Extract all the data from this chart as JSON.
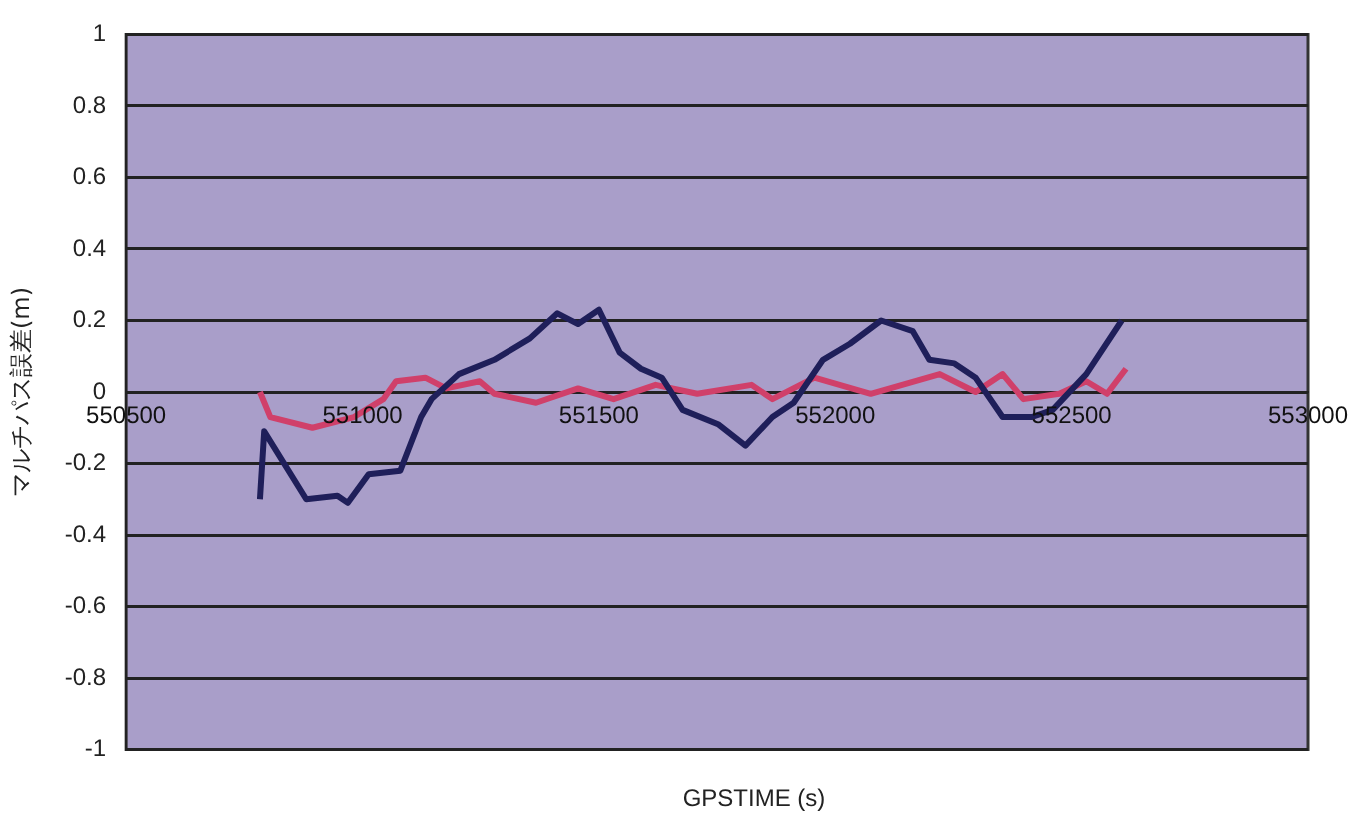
{
  "chart_data": {
    "type": "line",
    "xlabel": "GPSTIME (s)",
    "ylabel": "マルチパス誤差(m)",
    "xlim": [
      550500,
      553000
    ],
    "xticks": [
      550500,
      551000,
      551500,
      552000,
      552500,
      553000
    ],
    "ylim": [
      -1,
      1
    ],
    "yticks": [
      -1,
      -0.8,
      -0.6,
      -0.4,
      -0.2,
      0,
      0.2,
      0.4,
      0.6,
      0.8,
      1
    ],
    "grid": "y",
    "legend": false,
    "marker": "none",
    "line_style": "solid",
    "series": [
      {
        "color": "#1f1f5a",
        "x": [
          550783,
          550792,
          550881,
          550947,
          550969,
          551013,
          551080,
          551124,
          551146,
          551204,
          551279,
          551354,
          551412,
          551456,
          551500,
          551544,
          551589,
          551633,
          551677,
          551752,
          551810,
          551867,
          551912,
          551974,
          552031,
          552097,
          552164,
          552199,
          552252,
          552297,
          552354,
          552416,
          552460,
          552531,
          552606
        ],
        "values": [
          -0.3,
          -0.11,
          -0.3,
          -0.29,
          -0.31,
          -0.23,
          -0.22,
          -0.07,
          -0.02,
          0.05,
          0.09,
          0.15,
          0.22,
          0.19,
          0.23,
          0.11,
          0.065,
          0.04,
          -0.05,
          -0.09,
          -0.15,
          -0.07,
          -0.03,
          0.09,
          0.135,
          0.2,
          0.17,
          0.09,
          0.08,
          0.04,
          -0.07,
          -0.07,
          -0.05,
          0.05,
          0.2
        ]
      },
      {
        "color": "#d0406a",
        "x": [
          550783,
          550805,
          550894,
          550982,
          551044,
          551071,
          551133,
          551177,
          551248,
          551279,
          551367,
          551456,
          551531,
          551620,
          551708,
          551823,
          551867,
          551956,
          552075,
          552221,
          552297,
          552354,
          552398,
          552474,
          552531,
          552575,
          552615
        ],
        "values": [
          0.0,
          -0.07,
          -0.1,
          -0.07,
          -0.02,
          0.03,
          0.04,
          0.01,
          0.03,
          -0.005,
          -0.03,
          0.01,
          -0.02,
          0.02,
          -0.005,
          0.02,
          -0.02,
          0.04,
          -0.005,
          0.05,
          0,
          0.05,
          -0.02,
          -0.005,
          0.03,
          -0.005,
          0.065
        ]
      }
    ]
  }
}
